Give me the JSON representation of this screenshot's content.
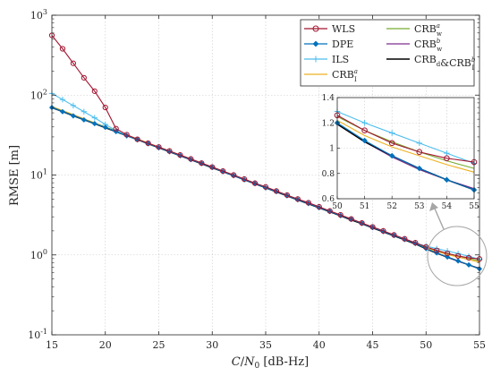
{
  "chart_data": {
    "type": "line",
    "title": "",
    "xlabel": "C/N0 [dB-Hz]",
    "ylabel": "RMSE [m]",
    "xlim": [
      15,
      55
    ],
    "ylim": [
      0.1,
      1000
    ],
    "yscale": "log",
    "grid": true,
    "legend_position": "top-right",
    "x_ticks": [
      "15",
      "20",
      "25",
      "30",
      "35",
      "40",
      "45",
      "50",
      "55"
    ],
    "y_ticks": [
      "10^-1",
      "10^0",
      "10^1",
      "10^2",
      "10^3"
    ],
    "x": [
      15,
      16,
      17,
      18,
      19,
      20,
      21,
      22,
      23,
      24,
      25,
      26,
      27,
      28,
      29,
      30,
      31,
      32,
      33,
      34,
      35,
      36,
      37,
      38,
      39,
      40,
      41,
      42,
      43,
      44,
      45,
      46,
      47,
      48,
      49,
      50,
      51,
      52,
      53,
      54,
      55
    ],
    "series": [
      {
        "name": "WLS",
        "color": "#a2142f",
        "marker": "circle",
        "values": [
          560,
          380,
          250,
          165,
          112,
          70,
          38,
          32,
          28,
          25,
          22.4,
          20,
          17.8,
          15.9,
          14.1,
          12.6,
          11.2,
          10,
          8.9,
          7.9,
          7.1,
          6.3,
          5.6,
          5,
          4.5,
          4,
          3.55,
          3.17,
          2.82,
          2.51,
          2.24,
          2,
          1.78,
          1.59,
          1.42,
          1.26,
          1.14,
          1.04,
          0.97,
          0.92,
          0.89
        ]
      },
      {
        "name": "DPE",
        "color": "#0072bd",
        "marker": "diamond",
        "values": [
          70,
          62,
          55,
          49,
          44,
          39.5,
          35,
          31,
          27.7,
          24.7,
          22,
          19.6,
          17.5,
          15.6,
          13.9,
          12.4,
          11,
          9.8,
          8.7,
          7.8,
          6.9,
          6.2,
          5.5,
          4.9,
          4.4,
          3.9,
          3.5,
          3.1,
          2.78,
          2.48,
          2.2,
          1.96,
          1.75,
          1.56,
          1.39,
          1.2,
          1.06,
          0.94,
          0.84,
          0.75,
          0.67
        ]
      },
      {
        "name": "ILS",
        "color": "#4dbeee",
        "marker": "plus",
        "values": [
          105,
          88,
          74,
          62,
          52,
          43,
          36,
          31,
          27.8,
          24.9,
          22.2,
          19.8,
          17.7,
          15.8,
          14.1,
          12.6,
          11.2,
          10,
          8.9,
          7.9,
          7.1,
          6.3,
          5.6,
          5,
          4.45,
          3.97,
          3.54,
          3.15,
          2.81,
          2.5,
          2.23,
          1.99,
          1.77,
          1.58,
          1.41,
          1.29,
          1.2,
          1.12,
          1.04,
          0.96,
          0.88
        ]
      },
      {
        "name": "CRB_I^a",
        "color": "#edb120",
        "marker": "none",
        "values": [
          72,
          64,
          57,
          50.5,
          45,
          40,
          35.6,
          31.7,
          28.3,
          25.2,
          22.4,
          20,
          17.8,
          15.9,
          14.1,
          12.6,
          11.2,
          10,
          8.9,
          7.9,
          7.1,
          6.3,
          5.6,
          5,
          4.45,
          3.97,
          3.54,
          3.15,
          2.81,
          2.5,
          2.23,
          1.99,
          1.77,
          1.58,
          1.41,
          1.22,
          1.1,
          1.01,
          0.94,
          0.87,
          0.81
        ]
      },
      {
        "name": "CRB_w^a",
        "color": "#77ac30",
        "marker": "none",
        "values": [
          71,
          63,
          56,
          50,
          44.5,
          39.7,
          35.4,
          31.5,
          28.1,
          25,
          22.3,
          19.9,
          17.7,
          15.8,
          14,
          12.5,
          11.1,
          9.9,
          8.8,
          7.85,
          7,
          6.25,
          5.57,
          4.96,
          4.42,
          3.94,
          3.51,
          3.13,
          2.79,
          2.48,
          2.21,
          1.97,
          1.76,
          1.57,
          1.4,
          1.25,
          1.14,
          1.05,
          0.97,
          0.9,
          0.84
        ]
      },
      {
        "name": "CRB_w^b",
        "color": "#7e2f8e",
        "marker": "none",
        "values": [
          70.5,
          62.5,
          55.5,
          49.5,
          44,
          39.4,
          35.1,
          31.3,
          27.9,
          24.8,
          22.1,
          19.7,
          17.6,
          15.7,
          14,
          12.45,
          11.1,
          9.9,
          8.8,
          7.8,
          6.95,
          6.2,
          5.52,
          4.92,
          4.38,
          3.9,
          3.48,
          3.1,
          2.76,
          2.46,
          2.19,
          1.96,
          1.74,
          1.55,
          1.38,
          1.19,
          1.05,
          0.93,
          0.83,
          0.75,
          0.68
        ]
      },
      {
        "name": "CRB_d&CRB_I^b",
        "color": "#000000",
        "marker": "none",
        "values": [
          69.5,
          62,
          55,
          49,
          43.8,
          39,
          34.8,
          31,
          27.7,
          24.6,
          21.9,
          19.5,
          17.4,
          15.5,
          13.8,
          12.3,
          11,
          9.8,
          8.7,
          7.75,
          6.9,
          6.15,
          5.48,
          4.88,
          4.35,
          3.88,
          3.46,
          3.08,
          2.74,
          2.45,
          2.18,
          1.94,
          1.73,
          1.54,
          1.37,
          1.19,
          1.05,
          0.94,
          0.84,
          0.75,
          0.67
        ]
      }
    ],
    "inset": {
      "xlim": [
        50,
        55
      ],
      "ylim": [
        0.6,
        1.4
      ],
      "x_ticks": [
        "50",
        "51",
        "52",
        "53",
        "54",
        "55"
      ],
      "y_ticks": [
        "0.6",
        "0.8",
        "1",
        "1.2",
        "1.4"
      ]
    }
  },
  "legend": {
    "col1": [
      {
        "series": 0,
        "main": "WLS",
        "sub": "",
        "sup": ""
      },
      {
        "series": 1,
        "main": "DPE",
        "sub": "",
        "sup": ""
      },
      {
        "series": 2,
        "main": "ILS",
        "sub": "",
        "sup": ""
      },
      {
        "series": 3,
        "main": "CRB",
        "sub": "I",
        "sup": "a"
      }
    ],
    "col2": [
      {
        "series": 4,
        "main": "CRB",
        "sub": "w",
        "sup": "a"
      },
      {
        "series": 5,
        "main": "CRB",
        "sub": "w",
        "sup": "b"
      },
      {
        "series": 6,
        "main": "CRB",
        "sub": "d",
        "sup": "",
        "main2": "&CRB",
        "sub2": "I",
        "sup2": "b"
      }
    ]
  }
}
